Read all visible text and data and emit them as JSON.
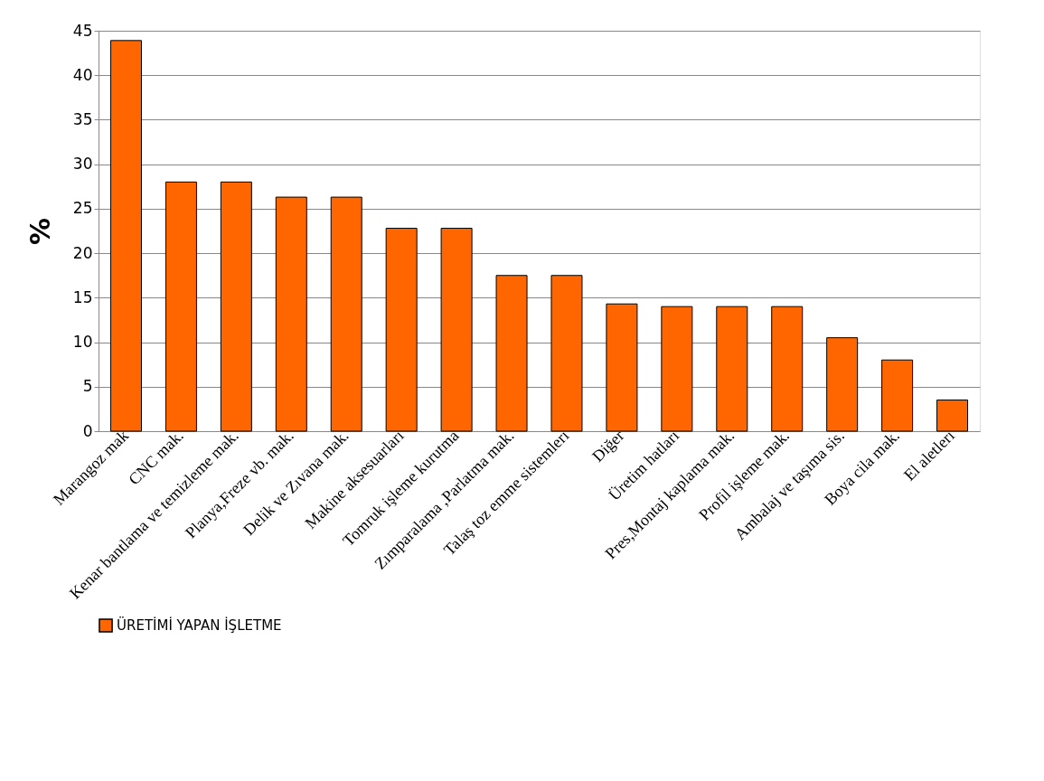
{
  "chart_data": {
    "type": "bar",
    "ylabel": "%",
    "categories": [
      "Marangoz mak",
      "CNC mak.",
      "Kenar bantlama ve temizleme mak.",
      "Planya,Freze vb. mak.",
      "Delik ve Zıvana mak.",
      "Makine aksesuarları",
      "Tomruk işleme kurutma",
      "Zımparalama ,Parlatma mak.",
      "Talaş toz emme sistemleri",
      "Diğer",
      "Üretim hatları",
      "Pres,Montaj kaplama mak.",
      "Profil işleme mak.",
      "Ambalaj ve taşıma sis.",
      "Boya cila mak.",
      "El aletleri"
    ],
    "series": [
      {
        "name": "ÜRETİMİ YAPAN İŞLETME",
        "color": "#ff6600",
        "values": [
          43.9,
          28.0,
          28.0,
          26.3,
          26.3,
          22.8,
          22.8,
          17.5,
          17.5,
          14.3,
          14.0,
          14.0,
          14.0,
          10.5,
          8.0,
          3.5
        ]
      }
    ],
    "ylim": [
      0,
      45
    ],
    "yticks": [
      0,
      5,
      10,
      15,
      20,
      25,
      30,
      35,
      40,
      45
    ],
    "grid": "y",
    "legend": "bottom"
  }
}
